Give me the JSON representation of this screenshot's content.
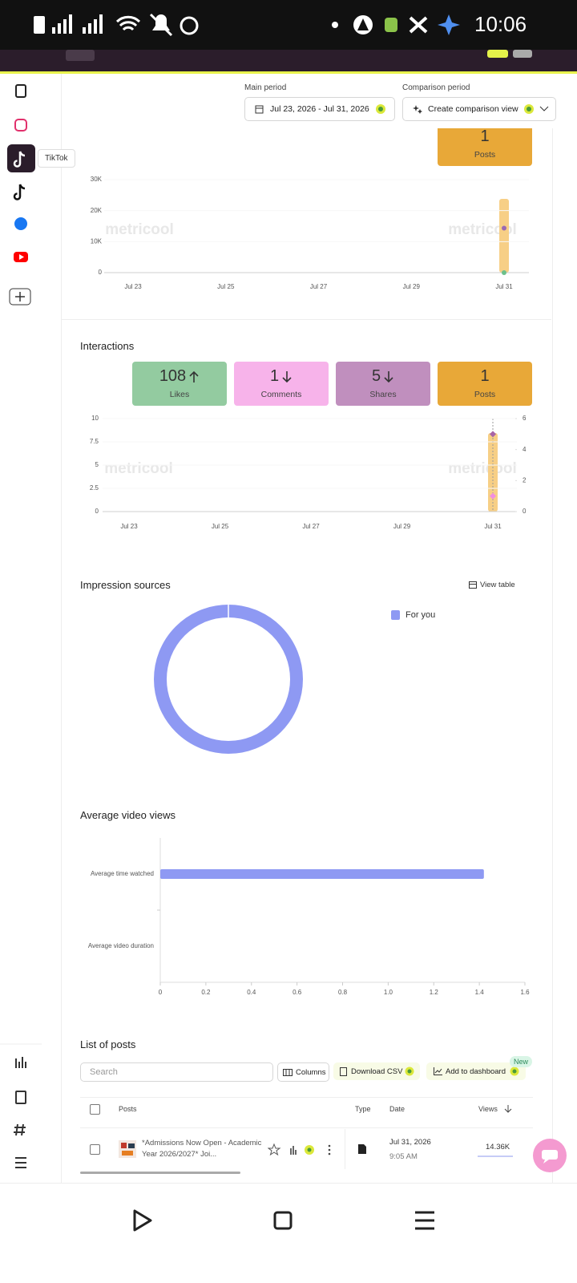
{
  "status_bar": {
    "time": "10:06"
  },
  "sidebar": {
    "tooltip": "TikTok"
  },
  "header": {
    "main_period_label": "Main period",
    "main_period": "Jul 23, 2026 - Jul 31, 2026",
    "comparison_label": "Comparison period",
    "comparison_button": "Create comparison view"
  },
  "watermark": "metricool",
  "views_chart": {
    "type": "line",
    "posts_card": {
      "value": 1,
      "label": "Posts"
    },
    "categories": [
      "Jul 23",
      null,
      "Jul 25",
      null,
      "Jul 27",
      null,
      "Jul 29",
      null,
      "Jul 31"
    ],
    "series": [
      {
        "color": "#9a6ab3",
        "values": [
          null,
          null,
          null,
          null,
          null,
          null,
          null,
          null,
          14360
        ]
      },
      {
        "color": "#6cc08b",
        "values": [
          null,
          null,
          null,
          null,
          null,
          null,
          null,
          null,
          0
        ]
      }
    ],
    "ylim": [
      0,
      30000
    ],
    "yticks": [
      0,
      {
        "value": 10000,
        "label": "10K"
      },
      {
        "value": 20000,
        "label": "20K"
      },
      {
        "value": 30000,
        "label": "30K"
      }
    ]
  },
  "interactions": {
    "title": "Interactions",
    "cards": [
      {
        "value": 108,
        "label": "Likes",
        "color": "#93cba0",
        "trend": "up"
      },
      {
        "value": 1,
        "label": "Comments",
        "color": "#f7b3ea",
        "trend": "down"
      },
      {
        "value": 5,
        "label": "Shares",
        "color": "#c08fbe",
        "trend": "down"
      },
      {
        "value": 1,
        "label": "Posts",
        "color": "#e8a838"
      }
    ],
    "chart": {
      "type": "line",
      "categories": [
        "Jul 23",
        null,
        "Jul 25",
        null,
        "Jul 27",
        null,
        "Jul 29",
        null,
        "Jul 31"
      ],
      "series": [
        {
          "color": "#f28ee0",
          "axis": "y2",
          "values": [
            null,
            null,
            null,
            null,
            null,
            null,
            null,
            null,
            1
          ]
        },
        {
          "color": "#a865a8",
          "axis": "y2",
          "values": [
            null,
            null,
            null,
            null,
            null,
            null,
            null,
            null,
            5
          ]
        }
      ],
      "ylim": [
        0,
        10
      ],
      "yticks": [
        0,
        2.5,
        5,
        7.5,
        10
      ],
      "y2lim": [
        0,
        6
      ],
      "y2ticks": [
        0,
        2,
        4,
        6
      ]
    }
  },
  "impression_sources": {
    "type": "pie",
    "title": "Impression sources",
    "view_table": "View table",
    "categories": [
      "For you"
    ],
    "values": [
      100
    ],
    "colors": [
      "#8e99f3"
    ],
    "donut": true
  },
  "average_video_views": {
    "type": "bar",
    "orientation": "horizontal",
    "title": "Average video views",
    "categories": [
      "Average time watched",
      "Average video duration"
    ],
    "values": [
      1.42,
      0
    ],
    "color": "#8e99f3",
    "xlim": [
      0,
      1.6
    ],
    "xticks": [
      0,
      0.2,
      0.4,
      0.6,
      0.8,
      {
        "value": 1,
        "label": "1.0"
      },
      1.2,
      1.4,
      1.6
    ]
  },
  "posts_list": {
    "title": "List of posts",
    "search_placeholder": "Search",
    "buttons": [
      "Columns",
      "Download CSV",
      "Add to dashboard"
    ],
    "new_badge": "New",
    "columns": [
      "Posts",
      "Type",
      "Date",
      "Views"
    ],
    "rows": [
      {
        "text": "*Admissions Now Open - Academic Year 2026/2027* Joi...",
        "date": "Jul 31, 2026",
        "time": "9:05 AM",
        "views": "14.36K"
      }
    ]
  }
}
